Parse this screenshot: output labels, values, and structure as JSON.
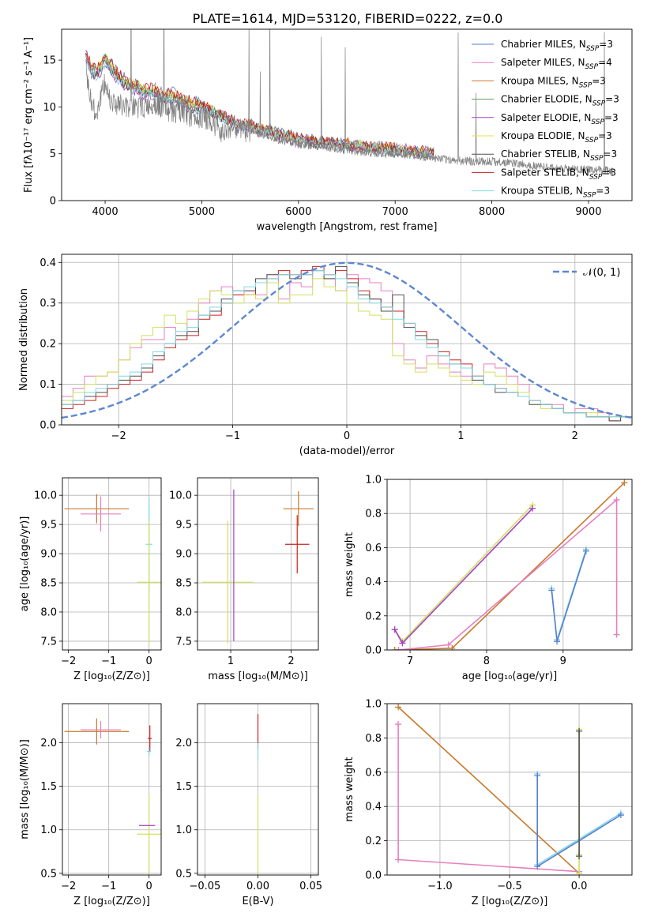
{
  "figure_title": "PLATE=1614, MJD=53120, FIBERID=0222, z=0.0",
  "legend_entries": [
    {
      "label": "Chabrier MILES, N",
      "sub": "SSP",
      "tail": "=3",
      "color": "#5b7fd0"
    },
    {
      "label": "Salpeter MILES, N",
      "sub": "SSP",
      "tail": "=4",
      "color": "#e77fc0"
    },
    {
      "label": "Kroupa MILES, N",
      "sub": "SSP",
      "tail": "=3",
      "color": "#c8792a"
    },
    {
      "label": "Chabrier ELODIE, N",
      "sub": "SSP",
      "tail": "=3",
      "color": "#5a9f5a"
    },
    {
      "label": "Salpeter ELODIE, N",
      "sub": "SSP",
      "tail": "=3",
      "color": "#a640c8"
    },
    {
      "label": "Kroupa ELODIE, N",
      "sub": "SSP",
      "tail": "=3",
      "color": "#e6e04a"
    },
    {
      "label": "Chabrier STELIB, N",
      "sub": "SSP",
      "tail": "=3",
      "color": "#505050"
    },
    {
      "label": "Salpeter STELIB, N",
      "sub": "SSP",
      "tail": "=3",
      "color": "#cc2020"
    },
    {
      "label": "Kroupa STELIB, N",
      "sub": "SSP",
      "tail": "=3",
      "color": "#7fd8e0"
    }
  ],
  "chart_data": [
    {
      "id": "spectrum",
      "type": "line",
      "xlabel": "wavelength [Angstrom, rest frame]",
      "ylabel": "Flux [fλ10⁻¹⁷ erg cm⁻² s⁻¹ A⁻¹]",
      "xlim": [
        3550,
        9450
      ],
      "ylim": [
        0,
        18.3
      ],
      "xticks": [
        4000,
        5000,
        6000,
        7000,
        8000,
        9000
      ],
      "yticks": [
        0,
        5,
        10,
        15
      ],
      "data_color": "#808080",
      "data_points": [
        [
          3800,
          14
        ],
        [
          3850,
          11
        ],
        [
          3900,
          9
        ],
        [
          3950,
          11
        ],
        [
          4000,
          12.5
        ],
        [
          4050,
          11
        ],
        [
          4100,
          10.5
        ],
        [
          4200,
          10
        ],
        [
          4300,
          10
        ],
        [
          4400,
          10
        ],
        [
          4500,
          10.5
        ],
        [
          4600,
          10
        ],
        [
          4700,
          9.5
        ],
        [
          4800,
          9.5
        ],
        [
          4900,
          9
        ],
        [
          5000,
          9
        ],
        [
          5100,
          8.5
        ],
        [
          5200,
          7.5
        ],
        [
          5300,
          8
        ],
        [
          5400,
          7.5
        ],
        [
          5500,
          7.5
        ],
        [
          5600,
          7
        ],
        [
          5700,
          7
        ],
        [
          5800,
          6.5
        ],
        [
          5900,
          6.3
        ],
        [
          6000,
          6
        ],
        [
          6200,
          5.8
        ],
        [
          6400,
          5.5
        ],
        [
          6600,
          5.3
        ],
        [
          6800,
          5
        ],
        [
          7000,
          5
        ],
        [
          7200,
          4.8
        ],
        [
          7400,
          4.5
        ],
        [
          7600,
          4.3
        ],
        [
          7800,
          4.2
        ],
        [
          8000,
          4.2
        ],
        [
          8200,
          4
        ],
        [
          8400,
          3.8
        ],
        [
          8600,
          3.5
        ],
        [
          8800,
          3.4
        ],
        [
          9000,
          3.3
        ],
        [
          9200,
          3.2
        ]
      ],
      "model_points": [
        [
          3800,
          15.5
        ],
        [
          3850,
          14
        ],
        [
          3900,
          13.5
        ],
        [
          3950,
          14
        ],
        [
          4000,
          15
        ],
        [
          4100,
          13.5
        ],
        [
          4200,
          12.5
        ],
        [
          4300,
          12
        ],
        [
          4400,
          11.5
        ],
        [
          4500,
          11.5
        ],
        [
          4600,
          11
        ],
        [
          4700,
          11
        ],
        [
          4800,
          10.5
        ],
        [
          4900,
          10
        ],
        [
          5000,
          10
        ],
        [
          5100,
          9.5
        ],
        [
          5200,
          9
        ],
        [
          5300,
          8.5
        ],
        [
          5400,
          8
        ],
        [
          5500,
          8
        ],
        [
          5600,
          7.5
        ],
        [
          5700,
          7.5
        ],
        [
          5800,
          7
        ],
        [
          5900,
          6.8
        ],
        [
          6000,
          6.5
        ],
        [
          6200,
          6.2
        ],
        [
          6400,
          6
        ],
        [
          6600,
          5.8
        ],
        [
          6800,
          5.6
        ],
        [
          7000,
          5.4
        ],
        [
          7200,
          5.2
        ],
        [
          7400,
          5
        ]
      ]
    },
    {
      "id": "residuals",
      "type": "step",
      "xlabel": "(data-model)/error",
      "ylabel": "Normed distribution",
      "xlim": [
        -2.5,
        2.5
      ],
      "ylim": [
        0,
        0.42
      ],
      "xticks": [
        -2,
        -1,
        0,
        1,
        2
      ],
      "yticks": [
        0.0,
        0.1,
        0.2,
        0.3,
        0.4
      ],
      "legend": "𝒩(0, 1)",
      "gauss_color": "#5b87d0",
      "bin_edges_start": -2.5,
      "bin_width": 0.1,
      "series": [
        {
          "color": "#e77fc0",
          "values": [
            0.07,
            0.09,
            0.12,
            0.12,
            0.13,
            0.16,
            0.19,
            0.21,
            0.21,
            0.24,
            0.22,
            0.26,
            0.3,
            0.33,
            0.34,
            0.32,
            0.33,
            0.32,
            0.37,
            0.31,
            0.35,
            0.34,
            0.38,
            0.36,
            0.33,
            0.37,
            0.36,
            0.35,
            0.33,
            0.2,
            0.16,
            0.14,
            0.17,
            0.15,
            0.13,
            0.12,
            0.12,
            0.15,
            0.14,
            0.12,
            0.1,
            0.06,
            0.05,
            0.05,
            0.03,
            0.04,
            0.04,
            0.03,
            0.02,
            0.02
          ]
        },
        {
          "color": "#cc2020",
          "values": [
            0.04,
            0.05,
            0.06,
            0.07,
            0.09,
            0.1,
            0.11,
            0.13,
            0.16,
            0.19,
            0.21,
            0.22,
            0.26,
            0.27,
            0.3,
            0.32,
            0.32,
            0.35,
            0.36,
            0.38,
            0.37,
            0.38,
            0.39,
            0.37,
            0.38,
            0.36,
            0.33,
            0.31,
            0.29,
            0.28,
            0.25,
            0.23,
            0.2,
            0.18,
            0.16,
            0.15,
            0.12,
            0.1,
            0.09,
            0.08,
            0.07,
            0.06,
            0.05,
            0.04,
            0.03,
            0.03,
            0.02,
            0.02,
            0.01,
            0.02
          ]
        },
        {
          "color": "#d0e060",
          "values": [
            0.06,
            0.08,
            0.1,
            0.12,
            0.13,
            0.16,
            0.2,
            0.22,
            0.24,
            0.27,
            0.25,
            0.28,
            0.31,
            0.33,
            0.32,
            0.3,
            0.32,
            0.31,
            0.35,
            0.3,
            0.32,
            0.32,
            0.36,
            0.34,
            0.33,
            0.3,
            0.28,
            0.27,
            0.26,
            0.17,
            0.15,
            0.13,
            0.15,
            0.14,
            0.12,
            0.11,
            0.1,
            0.13,
            0.12,
            0.1,
            0.08,
            0.05,
            0.04,
            0.04,
            0.03,
            0.03,
            0.03,
            0.02,
            0.02,
            0.02
          ]
        },
        {
          "color": "#505050",
          "values": [
            0.05,
            0.06,
            0.07,
            0.08,
            0.1,
            0.11,
            0.12,
            0.14,
            0.17,
            0.2,
            0.22,
            0.23,
            0.27,
            0.28,
            0.31,
            0.33,
            0.33,
            0.36,
            0.37,
            0.37,
            0.36,
            0.37,
            0.38,
            0.36,
            0.39,
            0.35,
            0.32,
            0.31,
            0.28,
            0.32,
            0.24,
            0.22,
            0.21,
            0.17,
            0.15,
            0.14,
            0.11,
            0.1,
            0.08,
            0.08,
            0.07,
            0.05,
            0.05,
            0.04,
            0.03,
            0.03,
            0.02,
            0.02,
            0.01,
            0.02
          ]
        },
        {
          "color": "#7fd8e0",
          "values": [
            0.05,
            0.06,
            0.08,
            0.09,
            0.1,
            0.12,
            0.13,
            0.15,
            0.18,
            0.2,
            0.23,
            0.24,
            0.27,
            0.29,
            0.3,
            0.33,
            0.34,
            0.35,
            0.36,
            0.37,
            0.37,
            0.37,
            0.38,
            0.37,
            0.36,
            0.34,
            0.31,
            0.3,
            0.29,
            0.26,
            0.25,
            0.21,
            0.19,
            0.17,
            0.15,
            0.14,
            0.12,
            0.1,
            0.09,
            0.08,
            0.07,
            0.06,
            0.05,
            0.04,
            0.03,
            0.03,
            0.02,
            0.02,
            0.02,
            0.02
          ]
        }
      ]
    },
    {
      "id": "age_vs_Z",
      "type": "errorbar",
      "xlabel": "Z [log₁₀(Z/Z⊙)]",
      "ylabel": "age  [log₁₀(age/yr)]",
      "xlim": [
        -2.15,
        0.3
      ],
      "ylim": [
        7.35,
        10.3
      ],
      "xticks": [
        -2,
        -1,
        0
      ],
      "yticks": [
        7.5,
        8.0,
        8.5,
        9.0,
        9.5,
        10.0
      ],
      "points": [
        {
          "x": -1.3,
          "y": 9.77,
          "xerr": 0.8,
          "yerr": 0.25,
          "color": "#c8792a"
        },
        {
          "x": -1.2,
          "y": 9.68,
          "xerr": 0.5,
          "yerr": 0.3,
          "color": "#e77fc0"
        },
        {
          "x": 0.0,
          "y": 9.16,
          "xerr": 0.08,
          "yerr": 0.8,
          "color": "#7fd8e0"
        },
        {
          "x": 0.0,
          "y": 8.51,
          "xerr": 0.3,
          "yerr": 1.05,
          "color": "#d0e060"
        }
      ]
    },
    {
      "id": "age_vs_mass",
      "type": "errorbar",
      "xlabel": "mass [log₁₀(M/M⊙)]",
      "ylabel": "",
      "xlim": [
        0.45,
        2.45
      ],
      "ylim": [
        7.35,
        10.3
      ],
      "xticks": [
        1,
        2
      ],
      "yticks": [
        7.5,
        8.0,
        8.5,
        9.0,
        9.5,
        10.0
      ],
      "points": [
        {
          "x": 2.12,
          "y": 9.77,
          "xerr": 0.25,
          "yerr": 0.3,
          "color": "#c8792a"
        },
        {
          "x": 2.1,
          "y": 9.16,
          "xerr": 0.2,
          "yerr": 0.5,
          "color": "#cc2020"
        },
        {
          "x": 0.95,
          "y": 8.51,
          "xerr": 0.42,
          "yerr": 1.05,
          "color": "#d0e060"
        },
        {
          "x": 1.05,
          "y": 8.8,
          "xerr": 0.0,
          "yerr": 1.3,
          "color": "#a640c8"
        }
      ]
    },
    {
      "id": "weight_vs_age",
      "type": "line",
      "xlabel": "age  [log₁₀(age/yr)]",
      "ylabel": "mass weight",
      "xlim": [
        6.7,
        9.9
      ],
      "ylim": [
        0,
        1.0
      ],
      "xticks": [
        7,
        8,
        9
      ],
      "yticks": [
        0.0,
        0.2,
        0.4,
        0.6,
        0.8,
        1.0
      ],
      "series": [
        {
          "color": "#d0e060",
          "x": [
            6.8,
            6.9,
            8.6
          ],
          "y": [
            0.12,
            0.05,
            0.85
          ]
        },
        {
          "color": "#a640c8",
          "x": [
            6.8,
            6.9,
            8.6
          ],
          "y": [
            0.12,
            0.04,
            0.83
          ]
        },
        {
          "color": "#c8792a",
          "x": [
            6.8,
            7.55,
            9.8
          ],
          "y": [
            0.0,
            0.01,
            0.98
          ]
        },
        {
          "color": "#e77fc0",
          "x": [
            6.85,
            7.5,
            9.7,
            9.7
          ],
          "y": [
            0.0,
            0.03,
            0.88,
            0.09
          ]
        },
        {
          "color": "#7fd8e0",
          "x": [
            8.85,
            8.92,
            9.3
          ],
          "y": [
            0.36,
            0.06,
            0.59
          ]
        },
        {
          "color": "#5b7fd0",
          "x": [
            8.85,
            8.92,
            9.3
          ],
          "y": [
            0.35,
            0.05,
            0.58
          ]
        }
      ]
    },
    {
      "id": "mass_vs_Z",
      "type": "errorbar",
      "xlabel": "Z [log₁₀(Z/Z⊙)]",
      "ylabel": "mass [log₁₀(M/M⊙)]",
      "xlim": [
        -2.15,
        0.3
      ],
      "ylim": [
        0.48,
        2.45
      ],
      "xticks": [
        -2,
        -1,
        0
      ],
      "yticks": [
        0.5,
        1.0,
        1.5,
        2.0
      ],
      "points": [
        {
          "x": -1.3,
          "y": 2.13,
          "xerr": 0.8,
          "yerr": 0.15,
          "color": "#c8792a"
        },
        {
          "x": -1.2,
          "y": 2.15,
          "xerr": 0.5,
          "yerr": 0.1,
          "color": "#e77fc0"
        },
        {
          "x": 0.02,
          "y": 2.05,
          "xerr": 0.05,
          "yerr": 0.15,
          "color": "#cc2020"
        },
        {
          "x": 0.0,
          "y": 1.9,
          "xerr": 0.05,
          "yerr": 0.05,
          "color": "#7fd8e0"
        },
        {
          "x": 0.0,
          "y": 0.95,
          "xerr": 0.3,
          "yerr": 0.45,
          "color": "#d0e060"
        },
        {
          "x": -0.05,
          "y": 1.05,
          "xerr": 0.2,
          "yerr": 0.0,
          "color": "#a640c8"
        }
      ]
    },
    {
      "id": "mass_vs_EBV",
      "type": "errorbar",
      "xlabel": "E(B-V)",
      "ylabel": "",
      "xlim": [
        -0.057,
        0.057
      ],
      "ylim": [
        0.48,
        2.45
      ],
      "xticks": [
        -0.05,
        0.0,
        0.05
      ],
      "yticks": [
        0.5,
        1.0,
        1.5,
        2.0
      ],
      "points": [
        {
          "x": 0.0,
          "y": 2.13,
          "xerr": 0.0,
          "yerr": 0.2,
          "color": "#cc2020"
        },
        {
          "x": 0.0,
          "y": 1.9,
          "xerr": 0.0,
          "yerr": 0.1,
          "color": "#7fd8e0"
        },
        {
          "x": 0.0,
          "y": 0.95,
          "xerr": 0.0,
          "yerr": 0.45,
          "color": "#d0e060"
        }
      ]
    },
    {
      "id": "weight_vs_Z",
      "type": "line",
      "xlabel": "Z [log₁₀(Z/Z⊙)]",
      "ylabel": "mass weight",
      "xlim": [
        -1.38,
        0.38
      ],
      "ylim": [
        0,
        1.0
      ],
      "xticks": [
        -1.0,
        -0.5,
        0.0
      ],
      "yticks": [
        0.0,
        0.2,
        0.4,
        0.6,
        0.8,
        1.0
      ],
      "series": [
        {
          "color": "#c8792a",
          "x": [
            -1.3,
            0.0
          ],
          "y": [
            0.98,
            0.01
          ]
        },
        {
          "color": "#e77fc0",
          "x": [
            -1.3,
            -1.3,
            0.0
          ],
          "y": [
            0.88,
            0.09,
            0.02
          ]
        },
        {
          "color": "#7fd8e0",
          "x": [
            -0.3,
            -0.3,
            0.3
          ],
          "y": [
            0.59,
            0.06,
            0.36
          ]
        },
        {
          "color": "#5b7fd0",
          "x": [
            -0.3,
            -0.3,
            0.3
          ],
          "y": [
            0.58,
            0.05,
            0.35
          ]
        },
        {
          "color": "#d0e060",
          "x": [
            0.0,
            0.0,
            0.0
          ],
          "y": [
            0.85,
            0.12,
            0.01
          ]
        },
        {
          "color": "#505050",
          "x": [
            0.0,
            0.0
          ],
          "y": [
            0.84,
            0.11
          ]
        }
      ]
    }
  ]
}
